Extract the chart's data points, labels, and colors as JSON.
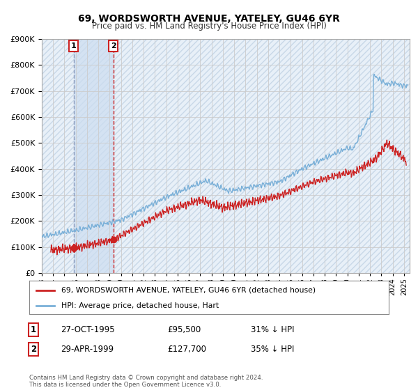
{
  "title": "69, WORDSWORTH AVENUE, YATELEY, GU46 6YR",
  "subtitle": "Price paid vs. HM Land Registry's House Price Index (HPI)",
  "ylim": [
    0,
    900000
  ],
  "yticks": [
    0,
    100000,
    200000,
    300000,
    400000,
    500000,
    600000,
    700000,
    800000,
    900000
  ],
  "xlim_start": 1993.0,
  "xlim_end": 2025.5,
  "legend_entry1": "69, WORDSWORTH AVENUE, YATELEY, GU46 6YR (detached house)",
  "legend_entry2": "HPI: Average price, detached house, Hart",
  "transaction1_date": 1995.82,
  "transaction1_price": 95500,
  "transaction1_label": "1",
  "transaction2_date": 1999.33,
  "transaction2_price": 127700,
  "transaction2_label": "2",
  "hpi_color": "#7ab0d8",
  "price_color": "#cc2222",
  "vline1_color": "#8888bb",
  "vline2_color": "#cc2222",
  "shade_color": "#ddeeff",
  "footer": "Contains HM Land Registry data © Crown copyright and database right 2024.\nThis data is licensed under the Open Government Licence v3.0.",
  "table_rows": [
    {
      "num": "1",
      "date": "27-OCT-1995",
      "price": "£95,500",
      "hpi": "31% ↓ HPI"
    },
    {
      "num": "2",
      "date": "29-APR-1999",
      "price": "£127,700",
      "hpi": "35% ↓ HPI"
    }
  ]
}
